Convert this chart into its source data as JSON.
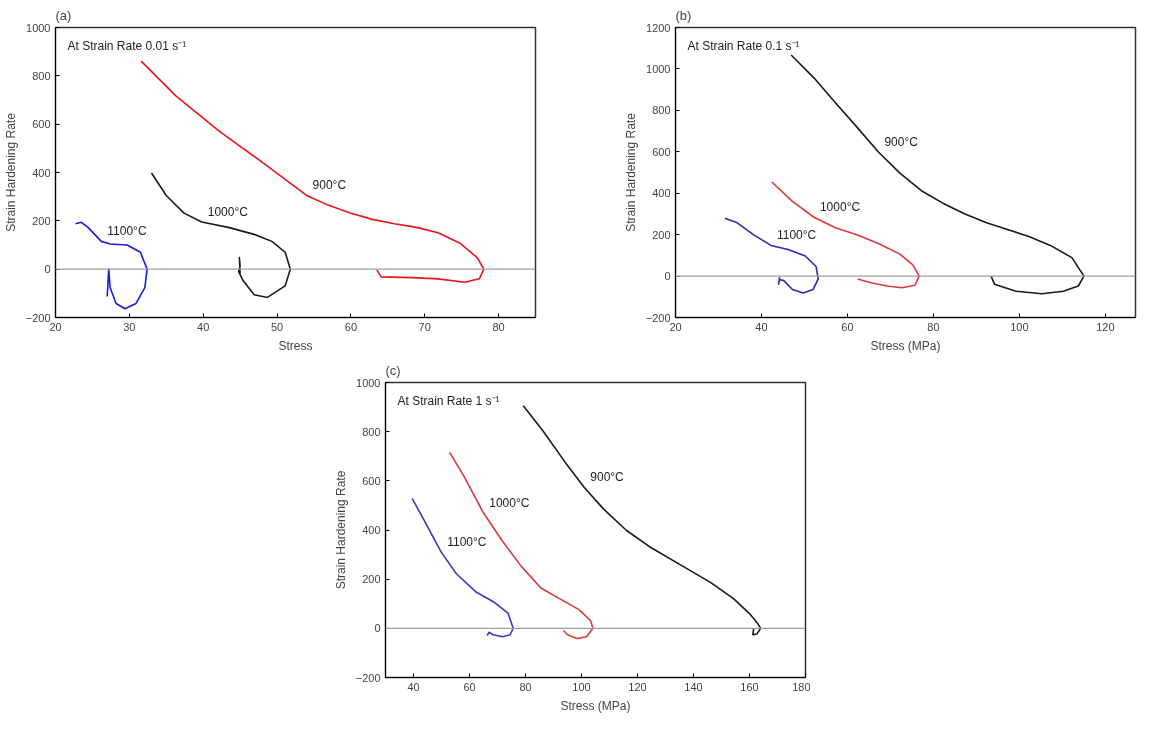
{
  "chart_data": [
    {
      "type": "line",
      "title": "(a)",
      "xlabel": "Stress",
      "ylabel": "Strain Hardening Rate",
      "annotations": [
        "At Strain Rate 0.01 s⁻¹"
      ],
      "xlim": [
        20,
        85
      ],
      "ylim": [
        -200,
        1000
      ],
      "xticks": [
        20,
        30,
        40,
        50,
        60,
        70,
        80
      ],
      "yticks": [
        -200,
        0,
        200,
        400,
        600,
        800,
        1000
      ],
      "grid": false,
      "ref_lines": [
        {
          "axis": "y",
          "value": 0,
          "color": "#a0a0a0"
        }
      ],
      "series": [
        {
          "name": "900°C",
          "color": "#e8141a",
          "x": [
            31.6,
            36.3,
            42.2,
            48.2,
            54.0,
            57.0,
            59.9,
            62.9,
            65.9,
            68.9,
            71.8,
            74.8,
            77.1,
            78.0,
            77.4,
            75.4,
            71.8,
            68.3,
            64.1,
            63.5
          ],
          "values": [
            861,
            717,
            570,
            438,
            305,
            264,
            232,
            206,
            188,
            173,
            151,
            107,
            48,
            0,
            -40,
            -54,
            -40,
            -35,
            -32,
            -3
          ]
        },
        {
          "name": "1000°C",
          "color": "#1a1a1a",
          "x": [
            33.0,
            35.0,
            37.4,
            39.8,
            43.4,
            46.9,
            49.3,
            51.1,
            51.8,
            51.1,
            48.7,
            46.9,
            45.4,
            44.8,
            45.0,
            44.9,
            45.0
          ],
          "values": [
            398,
            305,
            232,
            195,
            173,
            144,
            115,
            70,
            0,
            -69,
            -117,
            -106,
            -47,
            -10,
            12,
            48,
            -18
          ]
        },
        {
          "name": "1100°C",
          "color": "#1a1ae0",
          "x": [
            22.7,
            23.5,
            24.4,
            26.2,
            27.4,
            29.7,
            31.5,
            32.4,
            32.1,
            30.9,
            29.4,
            28.2,
            27.4,
            27.2,
            27.1,
            27.0
          ],
          "values": [
            188,
            194,
            173,
            115,
            104,
            100,
            70,
            0,
            -76,
            -142,
            -164,
            -142,
            -76,
            0,
            -62,
            -113
          ]
        }
      ]
    },
    {
      "type": "line",
      "title": "(b)",
      "xlabel": "Stress (MPa)",
      "ylabel": "Strain Hardening Rate",
      "annotations": [
        "At Strain Rate 0.1 s⁻¹"
      ],
      "xlim": [
        20,
        127
      ],
      "ylim": [
        -200,
        1200
      ],
      "xticks": [
        20,
        40,
        60,
        80,
        100,
        120
      ],
      "yticks": [
        -200,
        0,
        200,
        400,
        600,
        800,
        1000,
        1200
      ],
      "grid": false,
      "ref_lines": [
        {
          "axis": "y",
          "value": 0,
          "color": "#a0a0a0"
        }
      ],
      "series": [
        {
          "name": "900°C",
          "color": "#1a1a1a",
          "x": [
            46.9,
            52.2,
            57.2,
            62.2,
            67.2,
            72.2,
            77.2,
            82.2,
            87.2,
            92.2,
            97.2,
            102.2,
            107.2,
            112.2,
            115.0,
            113.7,
            110.2,
            105.2,
            99.2,
            94.2,
            93.4
          ],
          "values": [
            1067,
            957,
            837,
            719,
            599,
            497,
            412,
            352,
            301,
            259,
            225,
            191,
            148,
            89,
            0,
            -48,
            -73,
            -85,
            -73,
            -39,
            0
          ]
        },
        {
          "name": "1000°C",
          "color": "#d93a3a",
          "x": [
            42.4,
            47.2,
            52.2,
            57.2,
            62.2,
            67.2,
            72.2,
            75.2,
            76.7,
            75.7,
            72.7,
            69.2,
            65.2,
            62.4
          ],
          "values": [
            454,
            361,
            284,
            233,
            199,
            157,
            106,
            54,
            0,
            -44,
            -56,
            -48,
            -31,
            -14
          ]
        },
        {
          "name": "1100°C",
          "color": "#2a2ab0",
          "x": [
            31.5,
            34.2,
            38.2,
            42.2,
            46.2,
            50.2,
            52.7,
            53.2,
            52.0,
            49.7,
            47.2,
            45.2,
            44.2,
            44.0,
            44.2
          ],
          "values": [
            279,
            259,
            199,
            148,
            128,
            97,
            46,
            -14,
            -65,
            -82,
            -65,
            -22,
            -17,
            -39,
            -5
          ]
        }
      ]
    },
    {
      "type": "line",
      "title": "(c)",
      "xlabel": "Stress (MPa)",
      "ylabel": "Strain Hardening Rate",
      "annotations": [
        "At Strain Rate 1 s⁻¹"
      ],
      "xlim": [
        30,
        180
      ],
      "ylim": [
        -200,
        1000
      ],
      "xticks": [
        40,
        60,
        80,
        100,
        120,
        140,
        160,
        180
      ],
      "yticks": [
        -200,
        0,
        200,
        400,
        600,
        800,
        1000
      ],
      "grid": false,
      "ref_lines": [
        {
          "axis": "y",
          "value": 0,
          "color": "#a0a0a0"
        }
      ],
      "series": [
        {
          "name": "900°C",
          "color": "#1a1a1a",
          "x": [
            79.2,
            86.0,
            94.2,
            101.0,
            107.9,
            116.1,
            124.3,
            135.2,
            146.2,
            154.4,
            159.9,
            162.6,
            164.0,
            162.6,
            161.2,
            161.5
          ],
          "values": [
            905,
            807,
            675,
            573,
            485,
            398,
            332,
            259,
            186,
            120,
            61,
            25,
            0,
            -23,
            -26,
            0
          ]
        },
        {
          "name": "1000°C",
          "color": "#d93a3a",
          "x": [
            52.9,
            58.1,
            64.9,
            71.8,
            78.6,
            85.5,
            92.3,
            99.1,
            103.2,
            104.1,
            101.8,
            98.4,
            95.0,
            93.6
          ],
          "values": [
            716,
            617,
            471,
            354,
            251,
            164,
            120,
            76,
            32,
            0,
            -34,
            -41,
            -26,
            -9
          ]
        },
        {
          "name": "1100°C",
          "color": "#3a3ac0",
          "x": [
            39.5,
            44.4,
            49.9,
            55.3,
            62.2,
            69.0,
            73.8,
            75.6,
            74.5,
            71.8,
            68.4,
            67.0,
            66.3
          ],
          "values": [
            529,
            427,
            310,
            222,
            149,
            105,
            61,
            0,
            -26,
            -34,
            -26,
            -16,
            -29
          ]
        }
      ]
    }
  ]
}
